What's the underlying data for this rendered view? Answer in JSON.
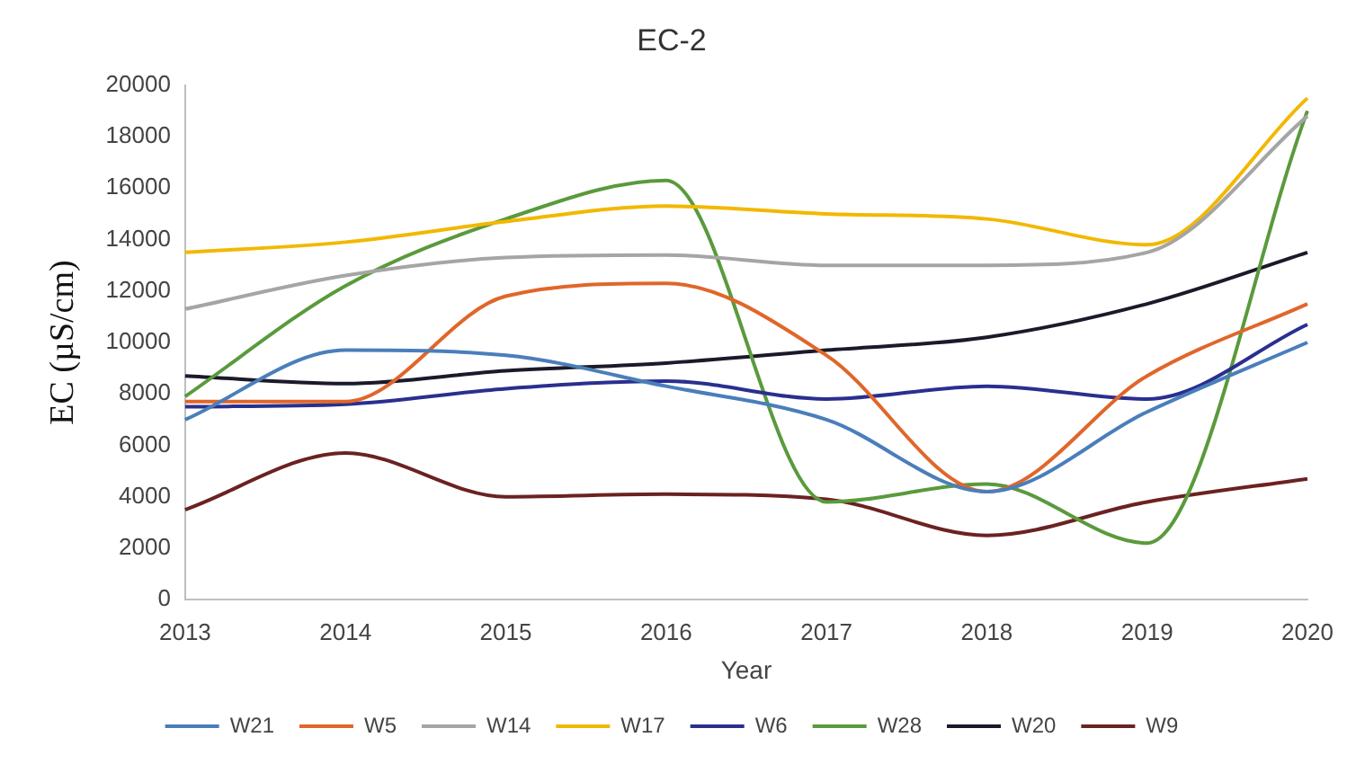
{
  "chart_data": {
    "type": "line",
    "title": "EC-2",
    "xlabel": "Year",
    "ylabel": "EC (µS/cm)",
    "categories": [
      "2013",
      "2014",
      "2015",
      "2016",
      "2017",
      "2018",
      "2019",
      "2020"
    ],
    "ylim": [
      0,
      20000
    ],
    "yticks": [
      0,
      2000,
      4000,
      6000,
      8000,
      10000,
      12000,
      14000,
      16000,
      18000,
      20000
    ],
    "grid": false,
    "legend": "bottom",
    "marker": "none",
    "series": [
      {
        "name": "W21",
        "color": "#4a7ebb",
        "values": [
          7000,
          9700,
          9500,
          8300,
          7000,
          4200,
          7300,
          10000
        ]
      },
      {
        "name": "W5",
        "color": "#e0662a",
        "values": [
          7700,
          7700,
          11800,
          12300,
          9500,
          4200,
          8700,
          11500
        ]
      },
      {
        "name": "W14",
        "color": "#a5a5a5",
        "values": [
          11300,
          12600,
          13300,
          13400,
          13000,
          13000,
          13500,
          18800
        ]
      },
      {
        "name": "W17",
        "color": "#f2b800",
        "values": [
          13500,
          13900,
          14700,
          15300,
          15000,
          14800,
          13800,
          19500
        ]
      },
      {
        "name": "W6",
        "color": "#2a2f8f",
        "values": [
          7500,
          7600,
          8200,
          8500,
          7800,
          8300,
          7800,
          10700
        ]
      },
      {
        "name": "W28",
        "color": "#5a9a3c",
        "values": [
          7900,
          12200,
          14800,
          16300,
          3800,
          4500,
          2200,
          19000
        ]
      },
      {
        "name": "W20",
        "color": "#1a1a2a",
        "values": [
          8700,
          8400,
          8900,
          9200,
          9700,
          10200,
          11500,
          13500
        ]
      },
      {
        "name": "W9",
        "color": "#6b2222",
        "values": [
          3500,
          5700,
          4000,
          4100,
          3900,
          2500,
          3800,
          4700
        ]
      }
    ]
  }
}
